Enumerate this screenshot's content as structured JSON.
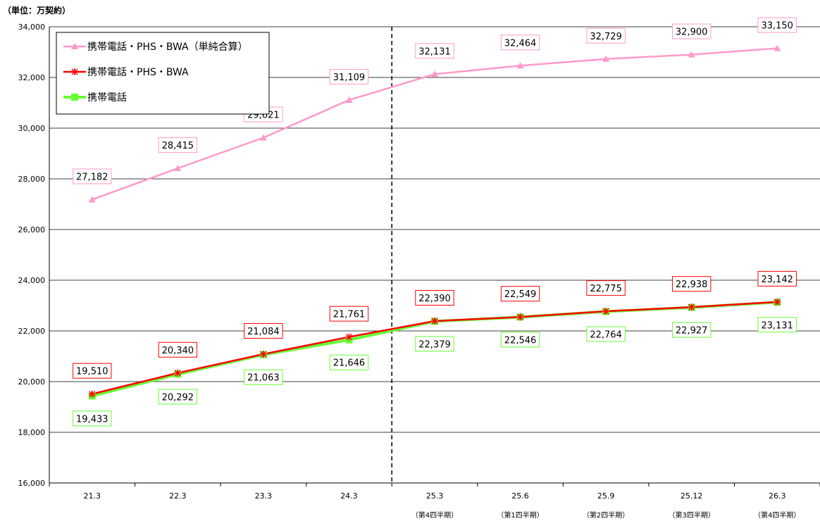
{
  "chart_data": {
    "type": "line",
    "unit_label": "（単位：万契約）",
    "categories": [
      "21.3",
      "22.3",
      "23.3",
      "24.3",
      "25.3",
      "25.6",
      "25.9",
      "25.12",
      "26.3"
    ],
    "sublabels": [
      "",
      "",
      "",
      "",
      "（第4四半期）",
      "（第1四半期）",
      "（第2四半期）",
      "（第3四半期）",
      "（第4四半期）"
    ],
    "ylim": [
      16000,
      34000
    ],
    "yticks": [
      16000,
      18000,
      20000,
      22000,
      24000,
      26000,
      28000,
      30000,
      32000,
      34000
    ],
    "ytick_labels": [
      "16,000",
      "18,000",
      "20,000",
      "22,000",
      "24,000",
      "26,000",
      "28,000",
      "30,000",
      "32,000",
      "34,000"
    ],
    "grid": true,
    "legend_position": "top-left",
    "divider_after_category": "24.3",
    "series": [
      {
        "name": "携帯電話・PHS・BWA（単純合算）",
        "color": "#ff99cc",
        "marker": "triangle",
        "values": [
          27182,
          28415,
          29621,
          31109,
          32131,
          32464,
          32729,
          32900,
          33150
        ],
        "labels": [
          "27,182",
          "28,415",
          "29,621",
          "31,109",
          "32,131",
          "32,464",
          "32,729",
          "32,900",
          "33,150"
        ]
      },
      {
        "name": "携帯電話・PHS・BWA",
        "color": "#ff0000",
        "marker": "asterisk",
        "values": [
          19510,
          20340,
          21084,
          21761,
          22390,
          22549,
          22775,
          22938,
          23142
        ],
        "labels": [
          "19,510",
          "20,340",
          "21,084",
          "21,761",
          "22,390",
          "22,549",
          "22,775",
          "22,938",
          "23,142"
        ]
      },
      {
        "name": "携帯電話",
        "color": "#66ff33",
        "marker": "square",
        "values": [
          19433,
          20292,
          21063,
          21646,
          22379,
          22546,
          22764,
          22927,
          23131
        ],
        "labels": [
          "19,433",
          "20,292",
          "21,063",
          "21,646",
          "22,379",
          "22,546",
          "22,764",
          "22,927",
          "23,131"
        ]
      }
    ]
  }
}
